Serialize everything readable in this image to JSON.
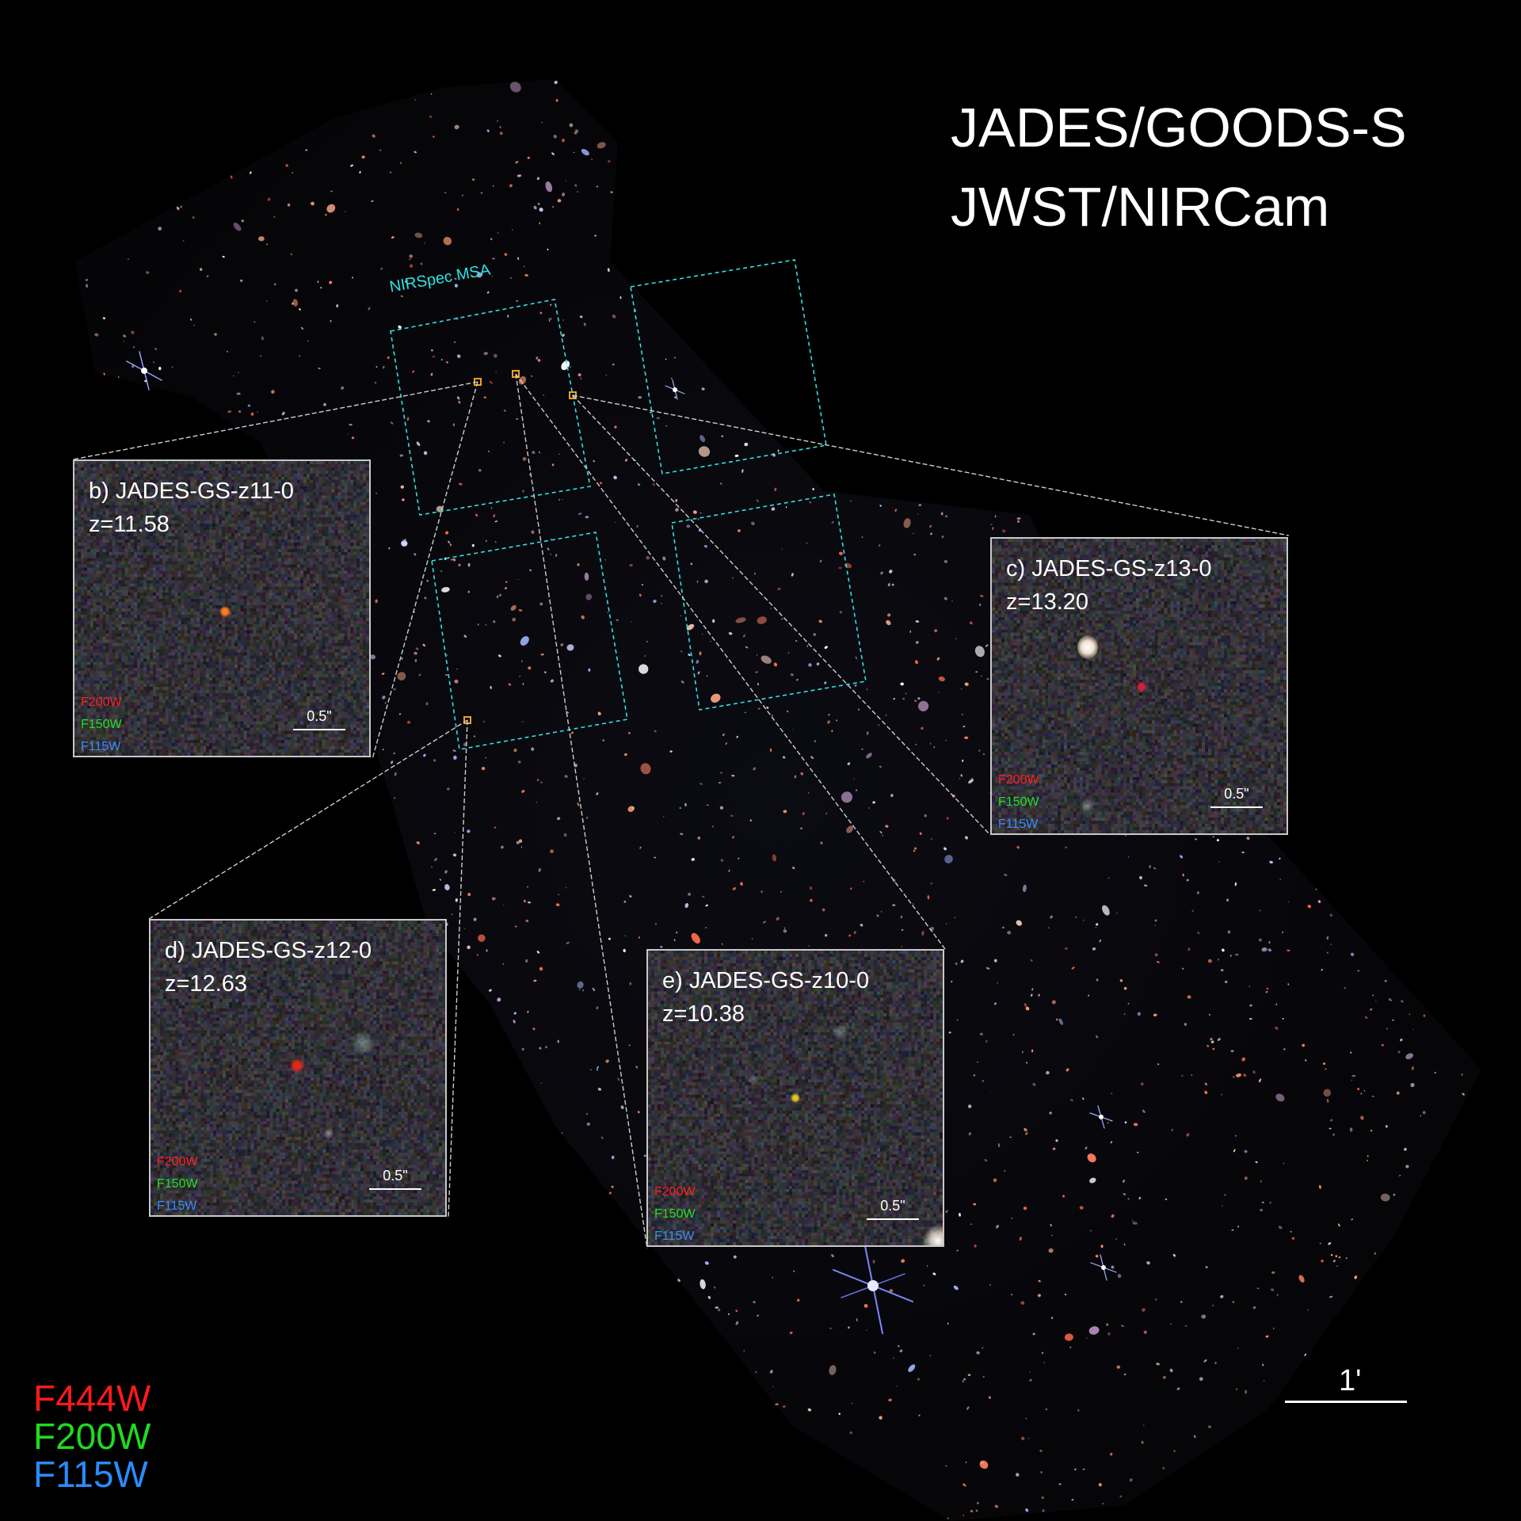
{
  "title": {
    "line1": "JADES/GOODS-S",
    "line2": "JWST/NIRCam"
  },
  "msa_label": "NIRSpec MSA",
  "insets": [
    {
      "name": "b) JADES-GS-z11-0",
      "redshift": "z=11.58",
      "source_color": "#ff7a20",
      "filters": [
        "F200W",
        "F150W",
        "F115W"
      ],
      "scale_bar": "0.5\""
    },
    {
      "name": "c) JADES-GS-z13-0",
      "redshift": "z=13.20",
      "source_color": "#d0203a",
      "filters": [
        "F200W",
        "F150W",
        "F115W"
      ],
      "scale_bar": "0.5\""
    },
    {
      "name": "d) JADES-GS-z12-0",
      "redshift": "z=12.63",
      "source_color": "#e0281e",
      "filters": [
        "F200W",
        "F150W",
        "F115W"
      ],
      "scale_bar": "0.5\""
    },
    {
      "name": "e) JADES-GS-z10-0",
      "redshift": "z=10.38",
      "source_color": "#e8c020",
      "filters": [
        "F200W",
        "F150W",
        "F115W"
      ],
      "scale_bar": "0.5\""
    }
  ],
  "legend": [
    {
      "label": "F444W",
      "color": "#ff1a1a"
    },
    {
      "label": "F200W",
      "color": "#1edc1e"
    },
    {
      "label": "F115W",
      "color": "#2a8cff"
    }
  ],
  "scale": "1'",
  "colors": {
    "msa_outline": "#2ee3e6",
    "target_marker": "#f0a020",
    "inset_border": "#c8c8c8"
  }
}
